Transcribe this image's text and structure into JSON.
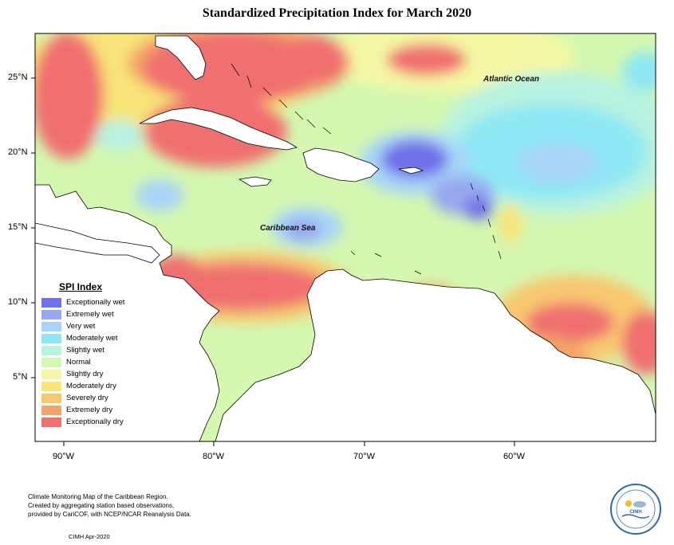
{
  "title": "Standardized Precipitation Index for March 2020",
  "labels": {
    "atlantic": "Atlantic Ocean",
    "caribbean": "Caribbean Sea"
  },
  "lat_ticks": [
    "25°N",
    "20°N",
    "15°N",
    "10°N",
    "5°N"
  ],
  "lon_ticks": [
    "90°W",
    "80°W",
    "70°W",
    "60°W"
  ],
  "legend": {
    "title": "SPI Index",
    "items": [
      {
        "label": "Exceptionally wet",
        "color": "#7070e8"
      },
      {
        "label": "Extremely wet",
        "color": "#96a8f0"
      },
      {
        "label": "Very wet",
        "color": "#a8d4f8"
      },
      {
        "label": "Moderately wet",
        "color": "#8ee8f4"
      },
      {
        "label": "Slightly wet",
        "color": "#b8f2e0"
      },
      {
        "label": "Normal",
        "color": "#d4f8b0"
      },
      {
        "label": "Slightly dry",
        "color": "#f4f8a4"
      },
      {
        "label": "Moderately dry",
        "color": "#f8e478"
      },
      {
        "label": "Severely dry",
        "color": "#f8c870"
      },
      {
        "label": "Extremely dry",
        "color": "#f4a468"
      },
      {
        "label": "Exceptionally dry",
        "color": "#f07070"
      }
    ]
  },
  "footer": {
    "line1": "Climate Monitoring Map of the Caribbean Region.",
    "line2": "Created by aggregating station based observations,",
    "line3": "provided by CariCOF, with NCEP/NCAR Reanalysis Data.",
    "date": "CIMH Apr-2020"
  },
  "logo": {
    "text": "CIMH"
  }
}
